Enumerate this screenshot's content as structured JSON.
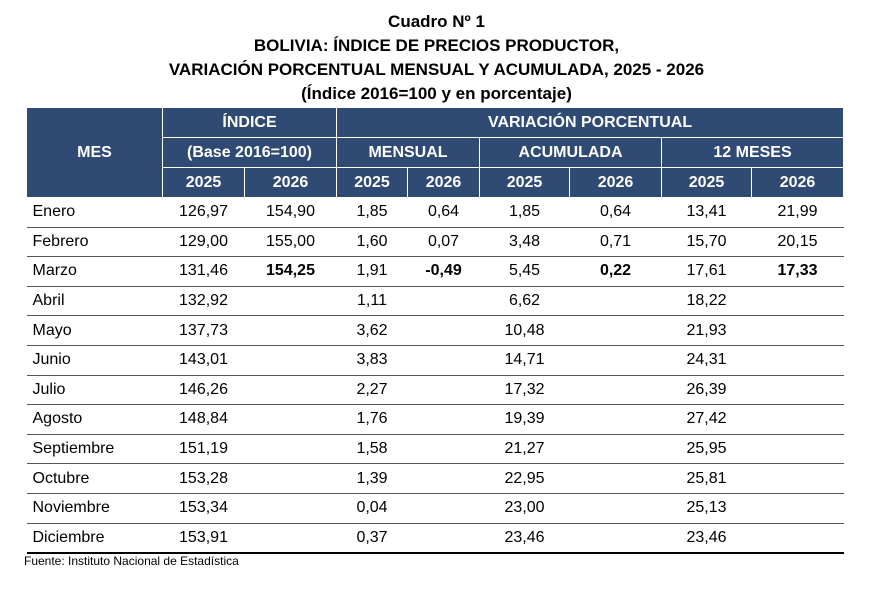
{
  "title": {
    "lines": [
      "Cuadro Nº 1",
      "BOLIVIA: ÍNDICE DE PRECIOS PRODUCTOR,",
      "VARIACIÓN PORCENTUAL MENSUAL Y ACUMULADA, 2025 - 2026",
      "(Índice 2016=100 y en porcentaje)"
    ]
  },
  "table": {
    "header": {
      "mes": "MES",
      "indice": "ÍNDICE",
      "variacion": "VARIACIÓN PORCENTUAL",
      "groups": [
        "(Base 2016=100)",
        "MENSUAL",
        "ACUMULADA",
        "12 MESES"
      ],
      "years": [
        "2025",
        "2026",
        "2025",
        "2026",
        "2025",
        "2026",
        "2025",
        "2026"
      ]
    },
    "rows": [
      [
        "Enero",
        "126,97",
        "154,90",
        "1,85",
        "0,64",
        "1,85",
        "0,64",
        "13,41",
        "21,99"
      ],
      [
        "Febrero",
        "129,00",
        "155,00",
        "1,60",
        "0,07",
        "3,48",
        "0,71",
        "15,70",
        "20,15"
      ],
      [
        "Marzo",
        "131,46",
        "154,25",
        "1,91",
        "-0,49",
        "5,45",
        "0,22",
        "17,61",
        "17,33"
      ],
      [
        "Abril",
        "132,92",
        null,
        "1,11",
        null,
        "6,62",
        null,
        "18,22",
        null
      ],
      [
        "Mayo",
        "137,73",
        null,
        "3,62",
        null,
        "10,48",
        null,
        "21,93",
        null
      ],
      [
        "Junio",
        "143,01",
        null,
        "3,83",
        null,
        "14,71",
        null,
        "24,31",
        null
      ],
      [
        "Julio",
        "146,26",
        null,
        "2,27",
        null,
        "17,32",
        null,
        "26,39",
        null
      ],
      [
        "Agosto",
        "148,84",
        null,
        "1,76",
        null,
        "19,39",
        null,
        "27,42",
        null
      ],
      [
        "Septiembre",
        "151,19",
        null,
        "1,58",
        null,
        "21,27",
        null,
        "25,95",
        null
      ],
      [
        "Octubre",
        "153,28",
        null,
        "1,39",
        null,
        "22,95",
        null,
        "25,81",
        null
      ],
      [
        "Noviembre",
        "153,34",
        null,
        "0,04",
        null,
        "23,00",
        null,
        "25,13",
        null
      ],
      [
        "Diciembre",
        "153,91",
        null,
        "0,37",
        null,
        "23,46",
        null,
        "23,46",
        null
      ]
    ]
  },
  "source": "Fuente: Instituto Nacional de Estadística"
}
